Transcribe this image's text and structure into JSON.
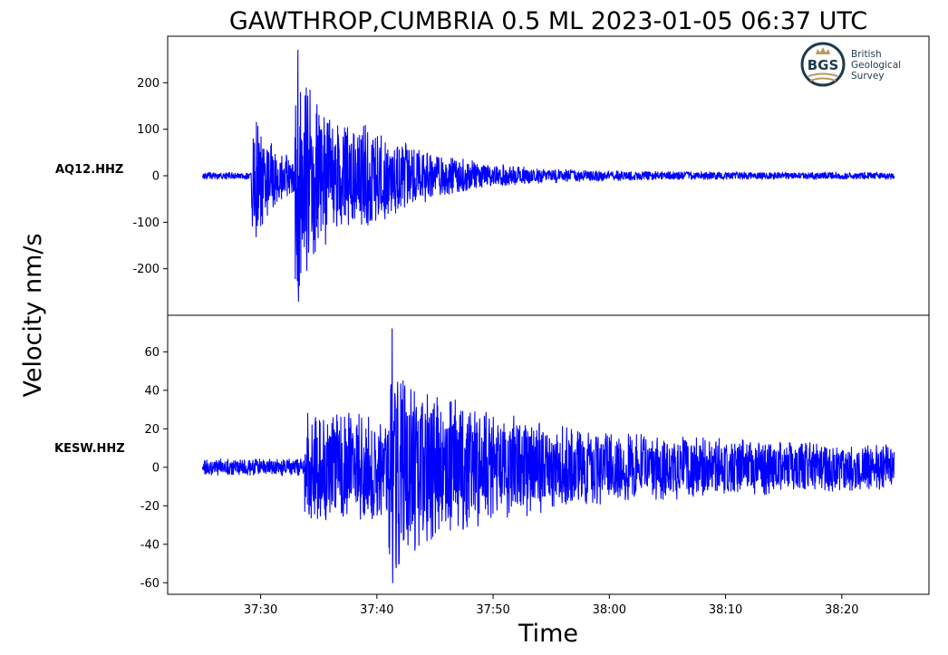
{
  "chart_data": {
    "type": "line",
    "title": "GAWTHROP,CUMBRIA 0.5 ML   2023-01-05 06:37 UTC",
    "xlabel": "Time",
    "ylabel": "Velocity nm/s",
    "grid": false,
    "line_color": "#0000ff",
    "x_range_seconds_after_0637": [
      22,
      87.5
    ],
    "x_ticks": [
      {
        "t": 30,
        "label": "37:30"
      },
      {
        "t": 40,
        "label": "37:40"
      },
      {
        "t": 50,
        "label": "37:50"
      },
      {
        "t": 60,
        "label": "38:00"
      },
      {
        "t": 70,
        "label": "38:10"
      },
      {
        "t": 80,
        "label": "38:20"
      }
    ],
    "panels": [
      {
        "station": "AQ12.HHZ",
        "ylim": [
          -300,
          300
        ],
        "yticks": [
          200,
          100,
          0,
          -100,
          -200
        ],
        "trace_start": 25,
        "trace_end": 84.5,
        "noise_amp": 7,
        "peak_max": 270,
        "peak_min": -270,
        "bursts": [
          {
            "t": 29.2,
            "amp": 140,
            "decay": 2.2
          },
          {
            "t": 32.9,
            "amp": 210,
            "decay": 5.5
          },
          {
            "t": 38.5,
            "amp": 40,
            "decay": 7
          }
        ]
      },
      {
        "station": "KESW.HHZ",
        "ylim": [
          -66,
          79
        ],
        "yticks": [
          60,
          40,
          20,
          0,
          -20,
          -40,
          -60
        ],
        "trace_start": 25,
        "trace_end": 84.5,
        "noise_amp": 4,
        "peak_max": 72,
        "peak_min": -60,
        "bursts": [
          {
            "t": 33.8,
            "amp": 24,
            "decay": 40
          },
          {
            "t": 41.0,
            "amp": 30,
            "decay": 6
          }
        ]
      }
    ]
  },
  "logo": {
    "badge_text": "BGS",
    "name_lines": [
      "British",
      "Geological",
      "Survey"
    ],
    "color": "#1e3a4c",
    "accent": "#b89a5e"
  }
}
